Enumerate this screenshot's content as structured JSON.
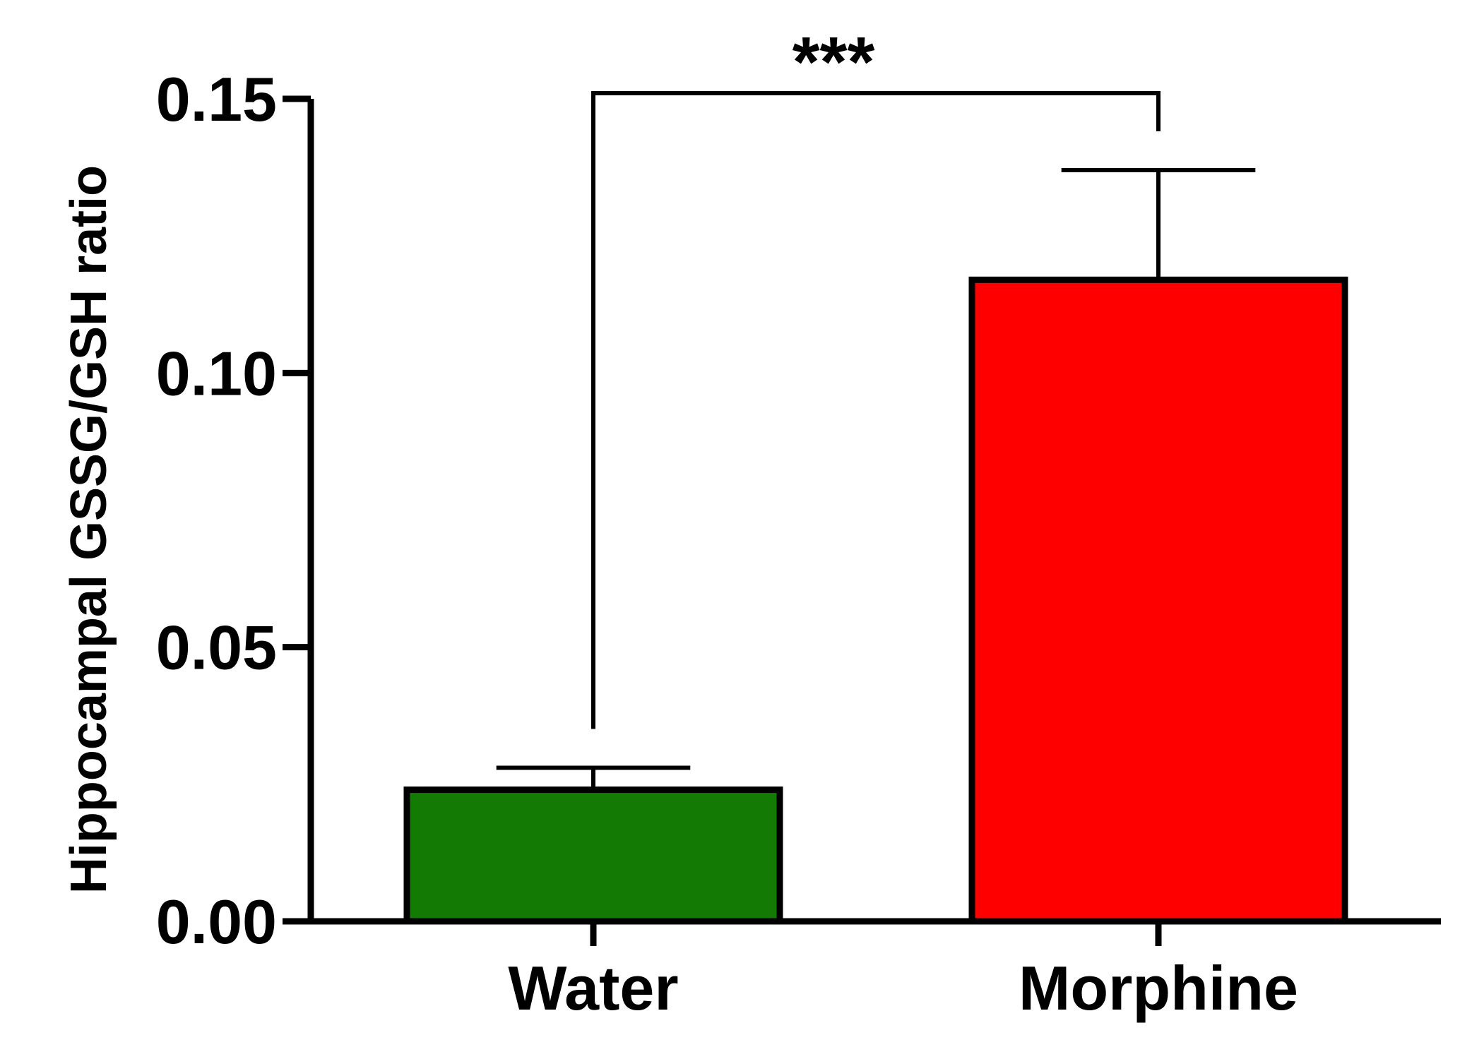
{
  "chart_data": {
    "type": "bar",
    "categories": [
      "Water",
      "Morphine"
    ],
    "values": [
      0.024,
      0.117
    ],
    "errors": [
      0.004,
      0.02
    ],
    "colors": [
      "#137B03",
      "#FF0000"
    ],
    "title": "",
    "xlabel": "",
    "ylabel": "Hippocampal GSSG/GSH ratio",
    "ylim": [
      0,
      0.15
    ],
    "yticks": [
      0.0,
      0.05,
      0.1,
      0.15
    ],
    "ytick_labels": [
      "0.00",
      "0.05",
      "0.10",
      "0.15"
    ],
    "grid": false,
    "legend": "none",
    "significance": {
      "pair": [
        "Water",
        "Morphine"
      ],
      "label": "***"
    }
  }
}
